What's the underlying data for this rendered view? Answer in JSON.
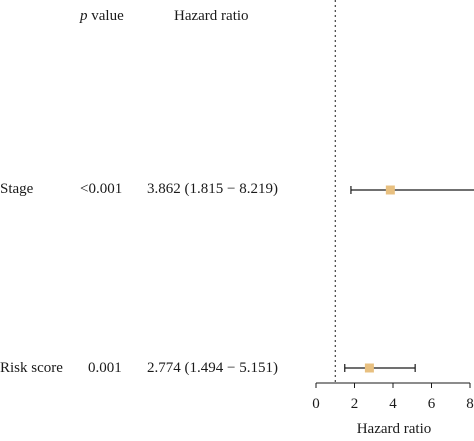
{
  "chart_data": {
    "type": "forest",
    "columns": [
      {
        "key": "p",
        "p_letter": "p",
        "rest": " value"
      },
      {
        "key": "hr_text",
        "header": "Hazard ratio"
      }
    ],
    "rows": [
      {
        "label": "Stage",
        "p": "<0.001",
        "hr_text": "3.862 (1.815 − 8.219)",
        "hr": 3.862,
        "lower": 1.815,
        "upper": 8.219
      },
      {
        "label": "Risk score",
        "p": "0.001",
        "hr_text": "2.774 (1.494 − 5.151)",
        "hr": 2.774,
        "lower": 1.494,
        "upper": 5.151
      }
    ],
    "xlim": [
      0,
      8
    ],
    "xticks": [
      0,
      2,
      4,
      6,
      8
    ],
    "xlabel": "Hazard ratio",
    "reference_line": 1,
    "marker_color": "#e8c080",
    "line_color": "#1a1a1a"
  }
}
